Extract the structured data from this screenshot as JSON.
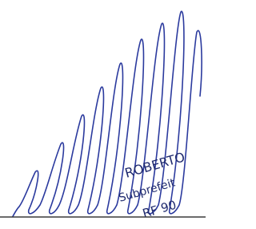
{
  "stamp": {
    "name": "ROBERTO",
    "office": "Subprefeit",
    "registration": "RF 90"
  }
}
